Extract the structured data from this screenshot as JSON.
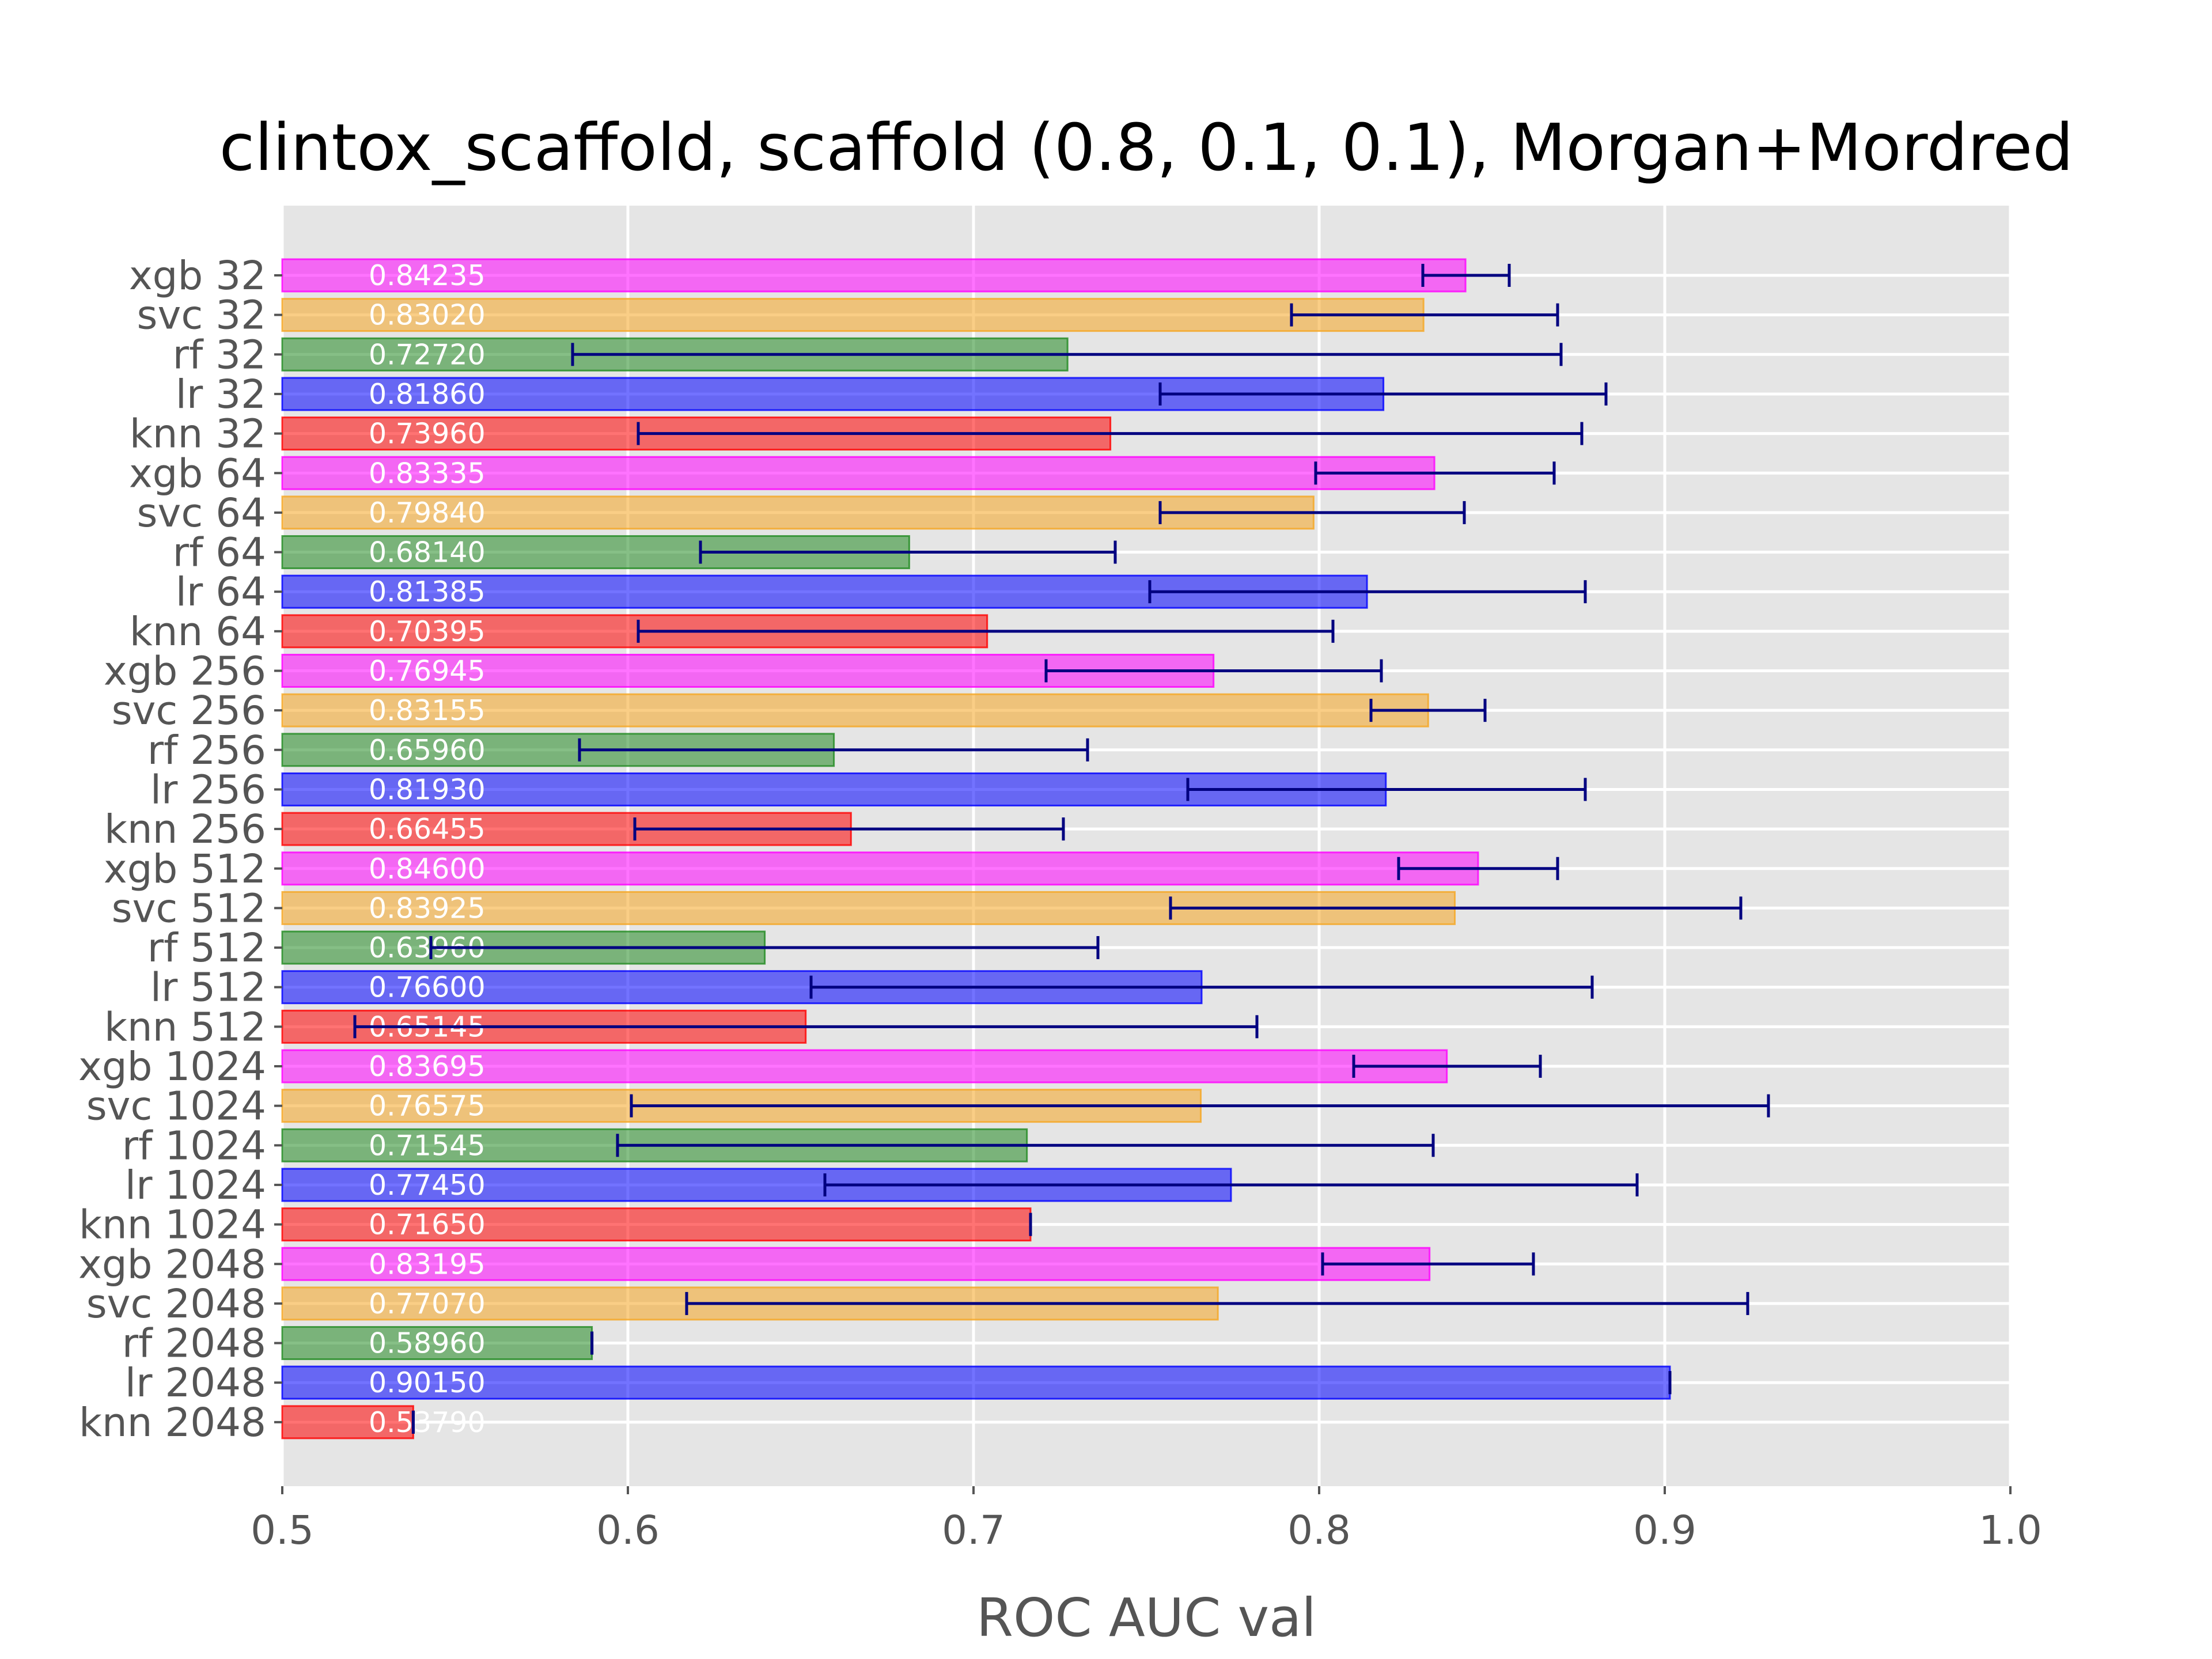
{
  "chart_data": {
    "type": "bar",
    "orientation": "horizontal",
    "title": "clintox_scaffold, scaffold (0.8, 0.1, 0.1), Morgan+Mordred",
    "xlabel": "ROC AUC val",
    "ylabel": "",
    "xlim": [
      0.5,
      1.0
    ],
    "xticks": [
      "0.5",
      "0.6",
      "0.7",
      "0.8",
      "0.9",
      "1.0"
    ],
    "grid": true,
    "background": "#e5e5e5",
    "errorbar_color": "#000080",
    "model_colors": {
      "xgb": "#ff00ff",
      "svc": "#f5a623",
      "rf": "#228b22",
      "lr": "#0000ff",
      "knn": "#ff0000"
    },
    "bars": [
      {
        "label": "xgb 32",
        "model": "xgb",
        "value": 0.84235,
        "value_text": "0.84235",
        "err_low": 0.83,
        "err_high": 0.855
      },
      {
        "label": "svc 32",
        "model": "svc",
        "value": 0.8302,
        "value_text": "0.83020",
        "err_low": 0.792,
        "err_high": 0.869
      },
      {
        "label": "rf 32",
        "model": "rf",
        "value": 0.7272,
        "value_text": "0.72720",
        "err_low": 0.584,
        "err_high": 0.87
      },
      {
        "label": "lr 32",
        "model": "lr",
        "value": 0.8186,
        "value_text": "0.81860",
        "err_low": 0.754,
        "err_high": 0.883
      },
      {
        "label": "knn 32",
        "model": "knn",
        "value": 0.7396,
        "value_text": "0.73960",
        "err_low": 0.603,
        "err_high": 0.876
      },
      {
        "label": "xgb 64",
        "model": "xgb",
        "value": 0.83335,
        "value_text": "0.83335",
        "err_low": 0.799,
        "err_high": 0.868
      },
      {
        "label": "svc 64",
        "model": "svc",
        "value": 0.7984,
        "value_text": "0.79840",
        "err_low": 0.754,
        "err_high": 0.842
      },
      {
        "label": "rf 64",
        "model": "rf",
        "value": 0.6814,
        "value_text": "0.68140",
        "err_low": 0.621,
        "err_high": 0.741
      },
      {
        "label": "lr 64",
        "model": "lr",
        "value": 0.81385,
        "value_text": "0.81385",
        "err_low": 0.751,
        "err_high": 0.877
      },
      {
        "label": "knn 64",
        "model": "knn",
        "value": 0.70395,
        "value_text": "0.70395",
        "err_low": 0.603,
        "err_high": 0.804
      },
      {
        "label": "xgb 256",
        "model": "xgb",
        "value": 0.76945,
        "value_text": "0.76945",
        "err_low": 0.721,
        "err_high": 0.818
      },
      {
        "label": "svc 256",
        "model": "svc",
        "value": 0.83155,
        "value_text": "0.83155",
        "err_low": 0.815,
        "err_high": 0.848
      },
      {
        "label": "rf 256",
        "model": "rf",
        "value": 0.6596,
        "value_text": "0.65960",
        "err_low": 0.586,
        "err_high": 0.733
      },
      {
        "label": "lr 256",
        "model": "lr",
        "value": 0.8193,
        "value_text": "0.81930",
        "err_low": 0.762,
        "err_high": 0.877
      },
      {
        "label": "knn 256",
        "model": "knn",
        "value": 0.66455,
        "value_text": "0.66455",
        "err_low": 0.602,
        "err_high": 0.726
      },
      {
        "label": "xgb 512",
        "model": "xgb",
        "value": 0.846,
        "value_text": "0.84600",
        "err_low": 0.823,
        "err_high": 0.869
      },
      {
        "label": "svc 512",
        "model": "svc",
        "value": 0.83925,
        "value_text": "0.83925",
        "err_low": 0.757,
        "err_high": 0.922
      },
      {
        "label": "rf 512",
        "model": "rf",
        "value": 0.6396,
        "value_text": "0.63960",
        "err_low": 0.543,
        "err_high": 0.736
      },
      {
        "label": "lr 512",
        "model": "lr",
        "value": 0.766,
        "value_text": "0.76600",
        "err_low": 0.653,
        "err_high": 0.879
      },
      {
        "label": "knn 512",
        "model": "knn",
        "value": 0.65145,
        "value_text": "0.65145",
        "err_low": 0.521,
        "err_high": 0.782
      },
      {
        "label": "xgb 1024",
        "model": "xgb",
        "value": 0.83695,
        "value_text": "0.83695",
        "err_low": 0.81,
        "err_high": 0.864
      },
      {
        "label": "svc 1024",
        "model": "svc",
        "value": 0.76575,
        "value_text": "0.76575",
        "err_low": 0.601,
        "err_high": 0.93
      },
      {
        "label": "rf 1024",
        "model": "rf",
        "value": 0.71545,
        "value_text": "0.71545",
        "err_low": 0.597,
        "err_high": 0.833
      },
      {
        "label": "lr 1024",
        "model": "lr",
        "value": 0.7745,
        "value_text": "0.77450",
        "err_low": 0.657,
        "err_high": 0.892
      },
      {
        "label": "knn 1024",
        "model": "knn",
        "value": 0.7165,
        "value_text": "0.71650",
        "err_low": 0.7165,
        "err_high": 0.7165
      },
      {
        "label": "xgb 2048",
        "model": "xgb",
        "value": 0.83195,
        "value_text": "0.83195",
        "err_low": 0.801,
        "err_high": 0.862
      },
      {
        "label": "svc 2048",
        "model": "svc",
        "value": 0.7707,
        "value_text": "0.77070",
        "err_low": 0.617,
        "err_high": 0.924
      },
      {
        "label": "rf 2048",
        "model": "rf",
        "value": 0.5896,
        "value_text": "0.58960",
        "err_low": 0.5896,
        "err_high": 0.5896
      },
      {
        "label": "lr 2048",
        "model": "lr",
        "value": 0.9015,
        "value_text": "0.90150",
        "err_low": 0.9015,
        "err_high": 0.9015
      },
      {
        "label": "knn 2048",
        "model": "knn",
        "value": 0.5379,
        "value_text": "0.53790",
        "err_low": 0.5379,
        "err_high": 0.5379
      }
    ]
  }
}
